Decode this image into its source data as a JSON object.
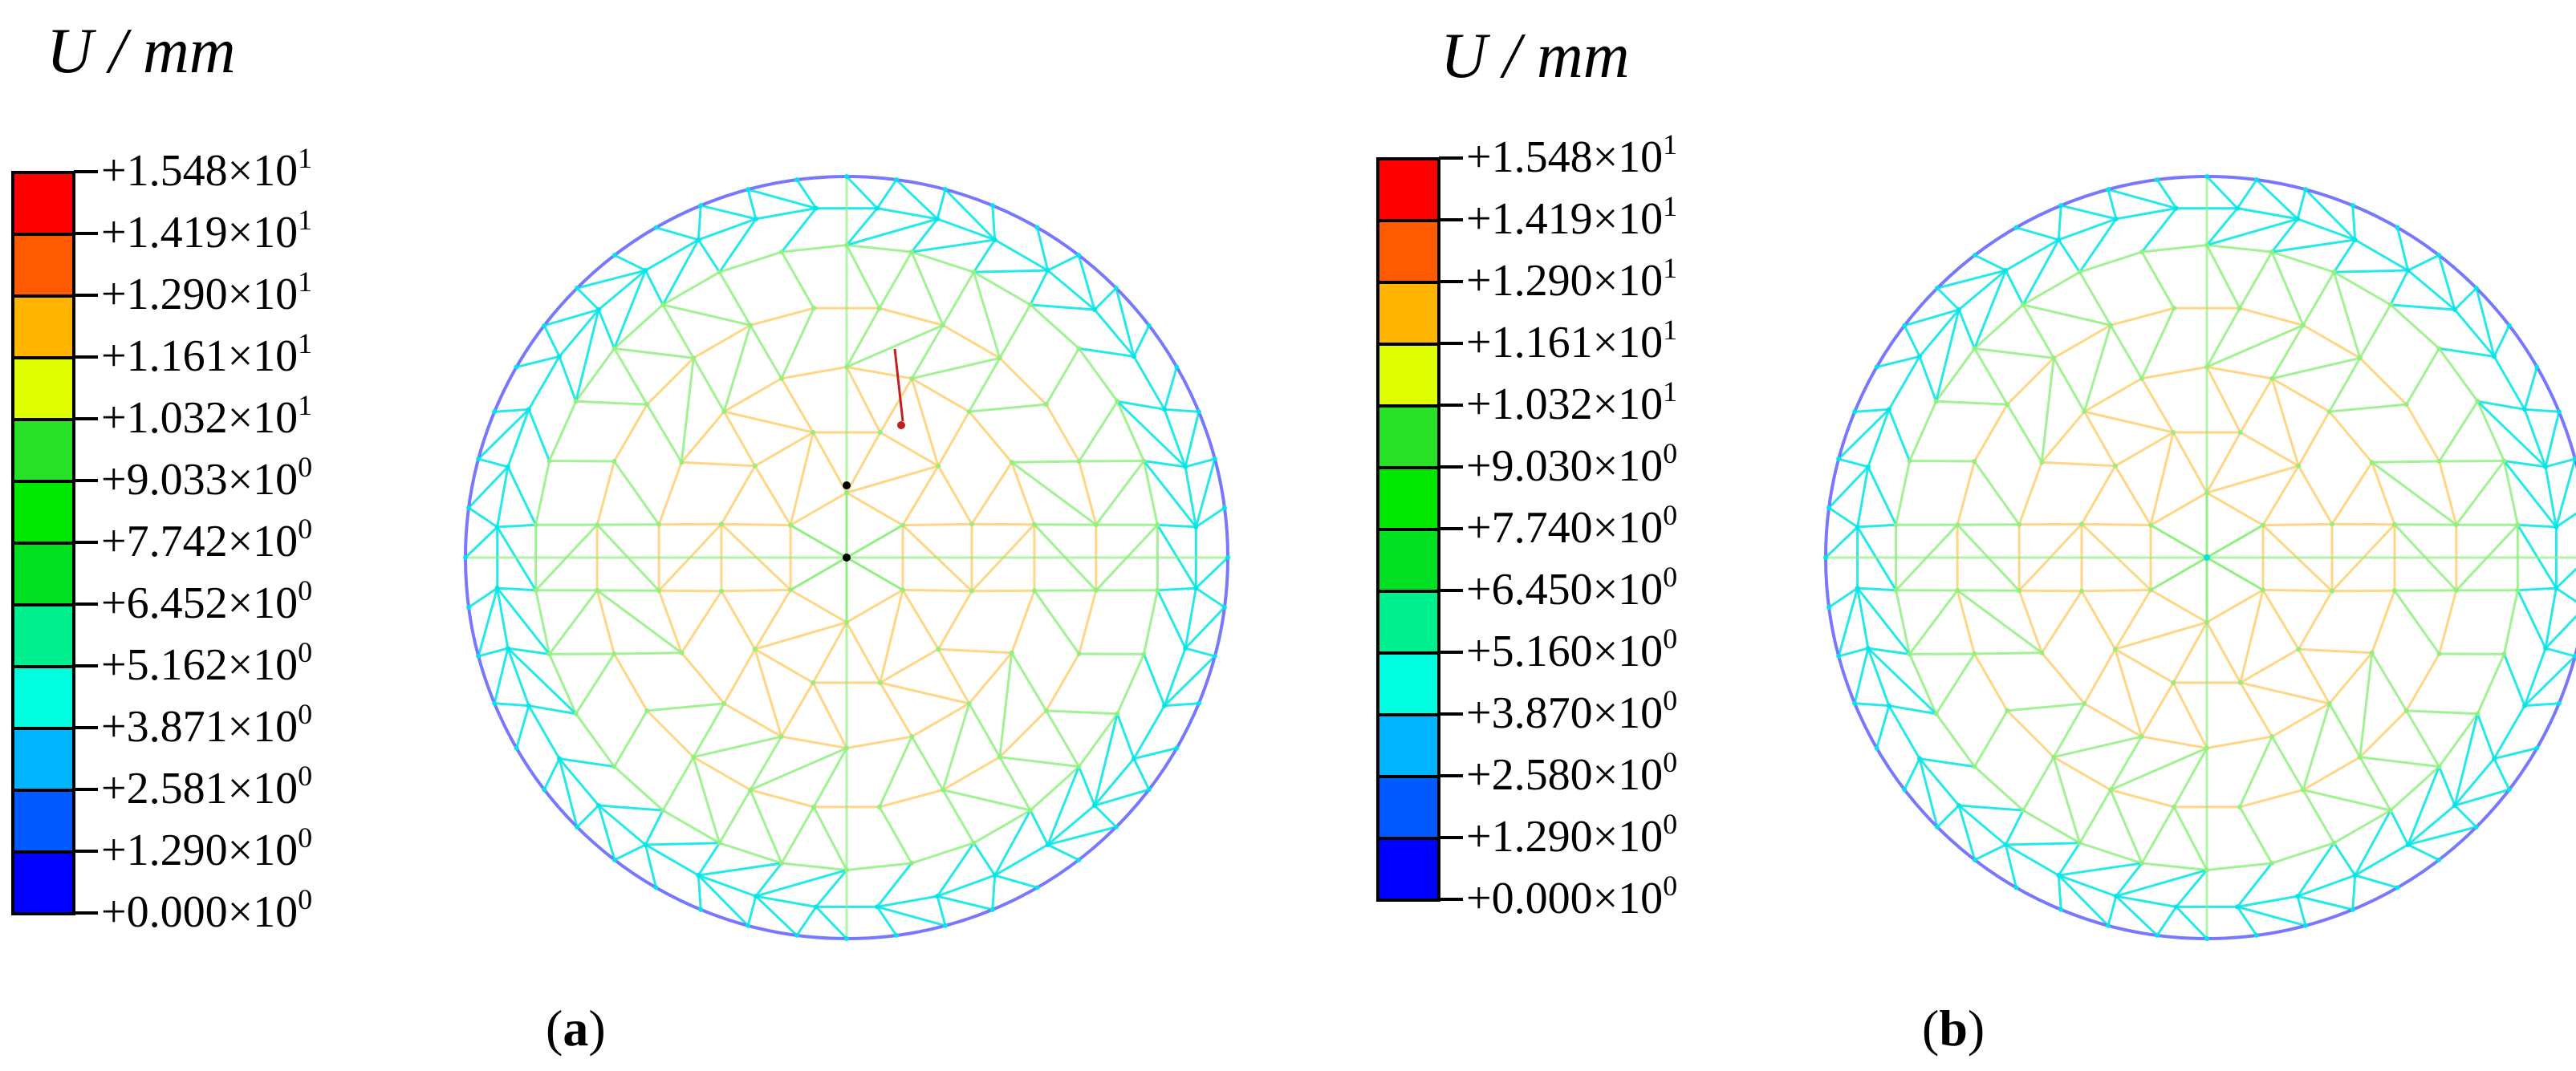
{
  "panels": [
    {
      "id": "a",
      "title": "U / mm",
      "caption_open": "(",
      "caption_letter": "a",
      "caption_close": ")",
      "legend": [
        {
          "mantissa": "+1.548×10",
          "exp": "1",
          "color": "#ff0000"
        },
        {
          "mantissa": "+1.419×10",
          "exp": "1",
          "color": "#ff5a00"
        },
        {
          "mantissa": "+1.290×10",
          "exp": "1",
          "color": "#ffb400"
        },
        {
          "mantissa": "+1.161×10",
          "exp": "1",
          "color": "#e0ff00"
        },
        {
          "mantissa": "+1.032×10",
          "exp": "1",
          "color": "#28e028"
        },
        {
          "mantissa": "+9.033×10",
          "exp": "0",
          "color": "#00e800"
        },
        {
          "mantissa": "+7.742×10",
          "exp": "0",
          "color": "#00e020"
        },
        {
          "mantissa": "+6.452×10",
          "exp": "0",
          "color": "#00f090"
        },
        {
          "mantissa": "+5.162×10",
          "exp": "0",
          "color": "#00ffe0"
        },
        {
          "mantissa": "+3.871×10",
          "exp": "0",
          "color": "#00b4ff"
        },
        {
          "mantissa": "+2.581×10",
          "exp": "0",
          "color": "#005aff"
        },
        {
          "mantissa": "+1.290×10",
          "exp": "0",
          "color": "#0000ff"
        },
        {
          "mantissa": "+0.000×10",
          "exp": "0",
          "color": null
        }
      ]
    },
    {
      "id": "b",
      "title": "U / mm",
      "caption_open": "(",
      "caption_letter": "b",
      "caption_close": ")",
      "legend": [
        {
          "mantissa": "+1.548×10",
          "exp": "1",
          "color": "#ff0000"
        },
        {
          "mantissa": "+1.419×10",
          "exp": "1",
          "color": "#ff5a00"
        },
        {
          "mantissa": "+1.290×10",
          "exp": "1",
          "color": "#ffb400"
        },
        {
          "mantissa": "+1.161×10",
          "exp": "1",
          "color": "#e0ff00"
        },
        {
          "mantissa": "+1.032×10",
          "exp": "1",
          "color": "#28e028"
        },
        {
          "mantissa": "+9.030×10",
          "exp": "0",
          "color": "#00e800"
        },
        {
          "mantissa": "+7.740×10",
          "exp": "0",
          "color": "#00e020"
        },
        {
          "mantissa": "+6.450×10",
          "exp": "0",
          "color": "#00f090"
        },
        {
          "mantissa": "+5.160×10",
          "exp": "0",
          "color": "#00ffe0"
        },
        {
          "mantissa": "+3.870×10",
          "exp": "0",
          "color": "#00b4ff"
        },
        {
          "mantissa": "+2.580×10",
          "exp": "0",
          "color": "#005aff"
        },
        {
          "mantissa": "+1.290×10",
          "exp": "0",
          "color": "#0000ff"
        },
        {
          "mantissa": "+0.000×10",
          "exp": "0",
          "color": null
        }
      ]
    }
  ],
  "mesh_colors": {
    "rim": "#7878ff",
    "boundary": "#00e6e6",
    "inner": "#ffd070",
    "spoke": "#90f080",
    "hot": "#c02020",
    "node": "#000000"
  }
}
